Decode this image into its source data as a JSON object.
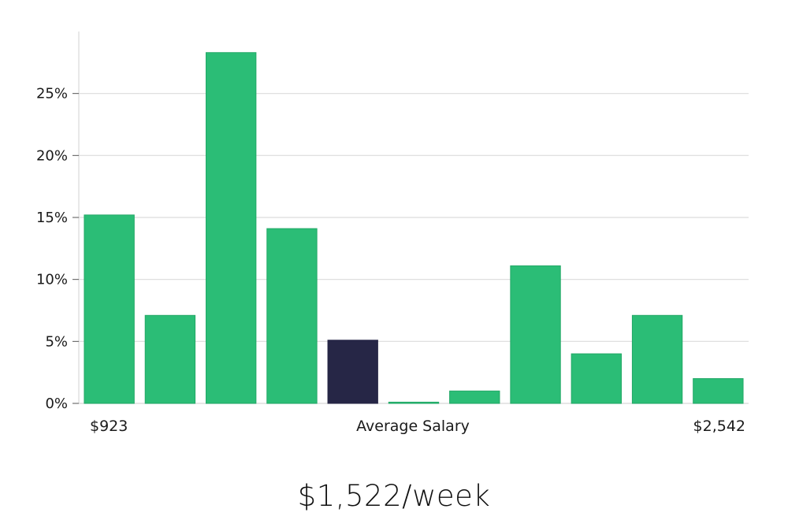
{
  "chart_data": {
    "type": "bar",
    "x_min_label": "$923",
    "x_center_label": "Average Salary",
    "x_max_label": "$2,542",
    "values": [
      15.2,
      7.1,
      28.3,
      14.1,
      5.1,
      0.1,
      1.0,
      11.1,
      4.0,
      7.1,
      2.0
    ],
    "highlight_index": 4,
    "ylim": [
      0,
      30
    ],
    "yticks": [
      0,
      5,
      10,
      15,
      20,
      25
    ],
    "ytick_labels": [
      "0%",
      "5%",
      "10%",
      "15%",
      "20%",
      "25%"
    ],
    "grid": true,
    "legend": "none"
  },
  "colors": {
    "bar": "#2bbd76",
    "bar_stroke": "#22a866",
    "highlight": "#262646",
    "grid": "#dcdcdc",
    "axis": "#d8d8d8"
  },
  "summary": {
    "average_label": "$1,522/week"
  }
}
